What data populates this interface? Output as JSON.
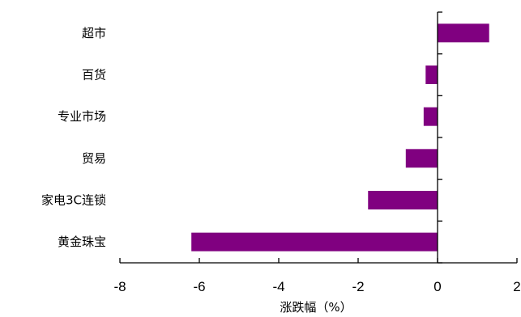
{
  "chart_data": {
    "type": "bar",
    "orientation": "horizontal",
    "categories": [
      "超市",
      "百货",
      "专业市场",
      "贸易",
      "家电3C连锁",
      "黄金珠宝"
    ],
    "values": [
      1.3,
      -0.3,
      -0.35,
      -0.8,
      -1.75,
      -6.2
    ],
    "xlabel": "涨跌幅（%）",
    "xlim": [
      -8,
      2
    ],
    "xticks": [
      -8,
      -6,
      -4,
      -2,
      0,
      2
    ],
    "xtick_labels": [
      "-8",
      "-6",
      "-4",
      "-2",
      "0",
      "2"
    ],
    "grid": false,
    "legend": "none",
    "bar_color": "#800080"
  }
}
